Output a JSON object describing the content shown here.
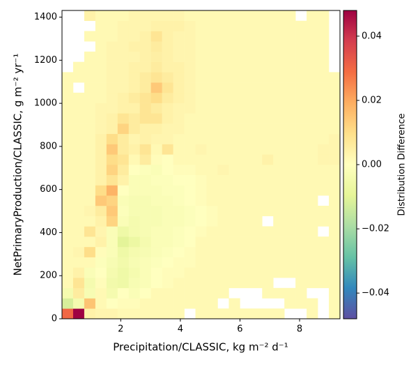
{
  "chart_data": {
    "type": "heatmap",
    "xlabel": "Precipitation/CLASSIC,  kg m⁻² d⁻¹",
    "ylabel": "NetPrimaryProduction/CLASSIC,  g m⁻² yr⁻¹",
    "colorbar_label": "Distribution Difference",
    "colormap": "Spectral_r",
    "xlim": [
      0.03,
      9.355
    ],
    "ylim": [
      0,
      1431
    ],
    "xticks": [
      2,
      4,
      6,
      8
    ],
    "yticks": [
      0,
      200,
      400,
      600,
      800,
      1000,
      1200,
      1400
    ],
    "vlim": [
      -0.048,
      0.048
    ],
    "cticks": [
      {
        "value": -0.04,
        "label": "−0.04"
      },
      {
        "value": -0.02,
        "label": "−0.02"
      },
      {
        "value": 0,
        "label": "0.00"
      },
      0.02,
      0.04
    ],
    "x_bins": [
      0.03,
      0.403,
      0.776,
      1.149,
      1.522,
      1.895,
      2.268,
      2.641,
      3.014,
      3.387,
      3.76,
      4.133,
      4.506,
      4.879,
      5.252,
      5.625,
      5.998,
      6.371,
      6.744,
      7.117,
      7.49,
      7.863,
      8.236,
      8.609,
      8.982,
      9.355
    ],
    "y_bins": [
      0,
      47.7,
      95.4,
      143.1,
      190.8,
      238.5,
      286.2,
      333.9,
      381.6,
      429.3,
      477,
      524.7,
      572.4,
      620.1,
      667.8,
      715.5,
      763.2,
      810.9,
      858.6,
      906.3,
      954,
      1001.7,
      1049.4,
      1097.1,
      1144.8,
      1192.5,
      1240.2,
      1287.9,
      1335.6,
      1383.3,
      1431
    ],
    "values": [
      [
        0.03,
        0.048,
        0.004,
        0.003,
        0.003,
        0.002,
        0.002,
        0.002,
        0.002,
        0.002,
        0.002,
        null,
        0.002,
        0.002,
        0.002,
        0.002,
        0.002,
        0.002,
        0.002,
        0.002,
        null,
        null,
        0.002,
        null,
        0.002
      ],
      [
        -0.012,
        -0.004,
        0.015,
        0.002,
        0,
        0.001,
        0.001,
        0.002,
        0.002,
        0.002,
        0.002,
        0.002,
        0.002,
        0.002,
        null,
        0.002,
        null,
        null,
        null,
        null,
        0.002,
        0.002,
        0.002,
        null,
        0.002
      ],
      [
        -0.004,
        0.006,
        -0.003,
        0.002,
        -0.004,
        0,
        -0.002,
        0,
        0.002,
        0.002,
        0.002,
        0.002,
        0.002,
        0.002,
        0.002,
        null,
        null,
        null,
        0.002,
        0.002,
        0.002,
        0.002,
        null,
        null,
        0.002
      ],
      [
        0.002,
        0.008,
        -0.004,
        0.001,
        -0.005,
        -0.006,
        -0.003,
        -0.002,
        0,
        0.001,
        0.002,
        0.002,
        0.002,
        0.002,
        0.002,
        0.002,
        0.002,
        0.002,
        0.002,
        null,
        null,
        0.002,
        0.002,
        0.002,
        0.002
      ],
      [
        0.002,
        0.004,
        -0.002,
        0,
        -0.004,
        -0.006,
        -0.004,
        -0.002,
        0,
        0.001,
        0.001,
        0.002,
        0.002,
        0.002,
        0.002,
        0.002,
        0.002,
        0.002,
        0.002,
        0.002,
        0.002,
        0.002,
        0.002,
        0.002,
        0.002
      ],
      [
        0.002,
        0.002,
        0.002,
        -0.001,
        -0.003,
        -0.005,
        -0.003,
        -0.002,
        -0.001,
        0,
        0.001,
        0.001,
        0.002,
        0.002,
        0.002,
        0.002,
        0.002,
        0.002,
        0.002,
        0.002,
        0.002,
        0.002,
        0.002,
        0.002,
        0.002
      ],
      [
        0.002,
        0.003,
        0.01,
        0.001,
        -0.002,
        -0.006,
        -0.004,
        -0.003,
        -0.002,
        -0.001,
        0,
        0.001,
        0.002,
        0.002,
        0.002,
        0.002,
        0.002,
        0.002,
        0.002,
        0.002,
        0.002,
        0.002,
        0.002,
        0.002,
        0.002
      ],
      [
        0.002,
        0.002,
        0.002,
        0.004,
        -0.002,
        -0.01,
        -0.007,
        -0.004,
        -0.002,
        -0.002,
        -0.001,
        0,
        0.002,
        0.002,
        0.002,
        0.002,
        0.002,
        0.002,
        0.002,
        0.002,
        0.002,
        0.002,
        0.002,
        0.002,
        0.002
      ],
      [
        0.002,
        0.002,
        0.008,
        0.003,
        -0.002,
        -0.006,
        -0.004,
        -0.003,
        -0.002,
        -0.002,
        -0.001,
        0,
        0.001,
        0.002,
        0.002,
        0.002,
        0.002,
        0.002,
        0.002,
        0.002,
        0.002,
        0.002,
        0.002,
        null,
        0.002
      ],
      [
        0.002,
        0.002,
        0.002,
        0.004,
        0.012,
        -0.002,
        -0.004,
        -0.003,
        -0.003,
        -0.002,
        -0.002,
        -0.001,
        0,
        0.001,
        0.002,
        0.002,
        0.002,
        0.002,
        null,
        0.002,
        0.002,
        0.002,
        0.002,
        0.002,
        0.002
      ],
      [
        0.002,
        0.002,
        0.003,
        0.006,
        0.014,
        -0.001,
        -0.003,
        -0.003,
        -0.003,
        -0.002,
        -0.002,
        -0.001,
        0,
        0.001,
        0.002,
        0.002,
        0.002,
        0.002,
        0.002,
        0.002,
        0.002,
        0.002,
        0.002,
        0.002,
        0.002
      ],
      [
        0.002,
        0.002,
        0.002,
        0.014,
        0.012,
        -0.002,
        -0.003,
        -0.003,
        -0.002,
        -0.002,
        -0.001,
        0,
        0.001,
        0.002,
        0.002,
        0.002,
        0.002,
        0.002,
        0.002,
        0.002,
        0.002,
        0.002,
        0.002,
        null,
        0.002
      ],
      [
        0.002,
        0.002,
        0.002,
        0.01,
        0.018,
        0,
        -0.002,
        -0.002,
        -0.002,
        -0.001,
        -0.001,
        0,
        0.001,
        0.002,
        0.002,
        0.002,
        0.002,
        0.002,
        0.002,
        0.002,
        0.002,
        0.002,
        0.002,
        0.002,
        0.002
      ],
      [
        0.002,
        0.002,
        0.002,
        0.004,
        0.008,
        0.004,
        -0.002,
        -0.002,
        -0.001,
        -0.001,
        0,
        0,
        0.001,
        0.002,
        0.002,
        0.002,
        0.002,
        0.002,
        0.002,
        0.002,
        0.002,
        0.002,
        0.002,
        0.002,
        0.002
      ],
      [
        0.002,
        0.002,
        0.002,
        0.004,
        0.012,
        0.006,
        0,
        -0.001,
        -0.002,
        0,
        0.001,
        0.001,
        0.002,
        0.002,
        0.003,
        0.002,
        0.002,
        0.002,
        0.002,
        0.002,
        0.002,
        0.002,
        0.002,
        0.002,
        0.002
      ],
      [
        0.002,
        0.002,
        0.002,
        0.004,
        0.01,
        0.008,
        0.002,
        0.006,
        0.001,
        0,
        0.002,
        0.002,
        0.002,
        0.002,
        0.002,
        0.002,
        0.002,
        0.002,
        0.004,
        0.002,
        0.002,
        0.002,
        0.002,
        0.003,
        0.003
      ],
      [
        0.002,
        0.002,
        0.002,
        0.004,
        0.014,
        0.006,
        0.004,
        0.008,
        0.002,
        0.008,
        0.002,
        0.002,
        0.003,
        0.002,
        0.002,
        0.002,
        0.002,
        0.002,
        0.002,
        0.002,
        0.002,
        0.002,
        0.002,
        0.003,
        0.003
      ],
      [
        0.002,
        0.002,
        0.002,
        0.004,
        0.01,
        0.006,
        0.003,
        0.004,
        0.003,
        0.003,
        0.002,
        0.002,
        0.002,
        0.002,
        0.002,
        0.002,
        0.002,
        0.002,
        0.002,
        0.002,
        0.002,
        0.002,
        0.002,
        0.002,
        0.003
      ],
      [
        0.002,
        0.002,
        0.002,
        0.003,
        0.004,
        0.012,
        0.006,
        0.004,
        0.004,
        0.003,
        0.003,
        0.002,
        0.002,
        0.002,
        0.002,
        0.002,
        0.002,
        0.002,
        0.002,
        0.002,
        0.002,
        0.002,
        0.002,
        0.002,
        0.002
      ],
      [
        0.002,
        0.002,
        0.002,
        0.003,
        0.004,
        0.008,
        0.006,
        0.008,
        0.008,
        0.004,
        0.003,
        0.002,
        0.002,
        0.002,
        0.002,
        0.002,
        0.002,
        0.002,
        0.002,
        0.002,
        0.002,
        0.002,
        0.002,
        0.002,
        0.002
      ],
      [
        0.002,
        0.002,
        0.002,
        0.003,
        0.003,
        0.004,
        0.004,
        0.008,
        0.006,
        0.004,
        0.003,
        0.003,
        0.002,
        0.002,
        0.002,
        0.002,
        0.002,
        0.002,
        0.002,
        0.002,
        0.002,
        0.002,
        0.002,
        0.002,
        0.002
      ],
      [
        0.002,
        0.002,
        0.002,
        0.002,
        0.003,
        0.004,
        0.006,
        0.008,
        0.01,
        0.006,
        0.004,
        0.003,
        0.002,
        0.002,
        0.002,
        0.002,
        0.002,
        0.002,
        0.002,
        0.002,
        0.002,
        0.002,
        0.002,
        0.002,
        0.002
      ],
      [
        0.002,
        null,
        0.002,
        0.002,
        0.003,
        0.003,
        0.004,
        0.006,
        0.014,
        0.008,
        0.004,
        0.003,
        0.002,
        0.002,
        0.002,
        0.002,
        0.002,
        0.002,
        0.002,
        0.002,
        0.002,
        0.002,
        0.002,
        0.002,
        0.002
      ],
      [
        0.002,
        0.002,
        0.002,
        0.002,
        0.003,
        0.003,
        0.004,
        0.006,
        0.008,
        0.006,
        0.004,
        0.003,
        0.002,
        0.002,
        0.002,
        0.002,
        0.002,
        0.002,
        0.002,
        0.002,
        0.002,
        0.002,
        0.002,
        0.002,
        0.002
      ],
      [
        null,
        0.002,
        0.002,
        0.002,
        0.003,
        0.003,
        0.004,
        0.004,
        0.006,
        0.004,
        0.004,
        0.003,
        0.002,
        0.002,
        0.002,
        0.002,
        0.002,
        0.002,
        0.002,
        0.002,
        0.002,
        0.002,
        0.002,
        0.002,
        null
      ],
      [
        null,
        null,
        0.002,
        0.002,
        0.003,
        0.003,
        0.003,
        0.004,
        0.005,
        0.004,
        0.003,
        0.003,
        0.002,
        0.002,
        0.002,
        0.002,
        0.002,
        0.002,
        0.002,
        0.002,
        0.002,
        0.002,
        0.002,
        0.002,
        null
      ],
      [
        null,
        null,
        null,
        0.002,
        0.003,
        0.003,
        0.004,
        0.004,
        0.006,
        0.004,
        0.003,
        0.003,
        0.002,
        0.002,
        0.002,
        0.002,
        0.002,
        0.002,
        0.002,
        0.002,
        0.002,
        0.002,
        0.002,
        0.002,
        null
      ],
      [
        null,
        null,
        0.002,
        0.002,
        0.002,
        0.003,
        0.003,
        0.004,
        0.008,
        0.004,
        0.003,
        0.003,
        0.002,
        0.002,
        0.002,
        0.002,
        0.002,
        0.002,
        0.002,
        0.002,
        0.002,
        0.002,
        0.002,
        0.002,
        null
      ],
      [
        null,
        null,
        null,
        0.002,
        0.002,
        0.003,
        0.003,
        0.003,
        0.004,
        0.004,
        0.004,
        0.003,
        0.002,
        0.002,
        0.002,
        0.002,
        0.002,
        0.002,
        0.002,
        0.002,
        0.002,
        0.002,
        0.002,
        0.002,
        null
      ],
      [
        null,
        null,
        0.004,
        0.002,
        0.002,
        0.002,
        0.003,
        0.003,
        0.003,
        0.003,
        0.003,
        0.002,
        0.002,
        0.002,
        0.002,
        0.002,
        0.002,
        0.002,
        0.002,
        0.002,
        0.002,
        null,
        0.002,
        0.002,
        null
      ]
    ]
  }
}
